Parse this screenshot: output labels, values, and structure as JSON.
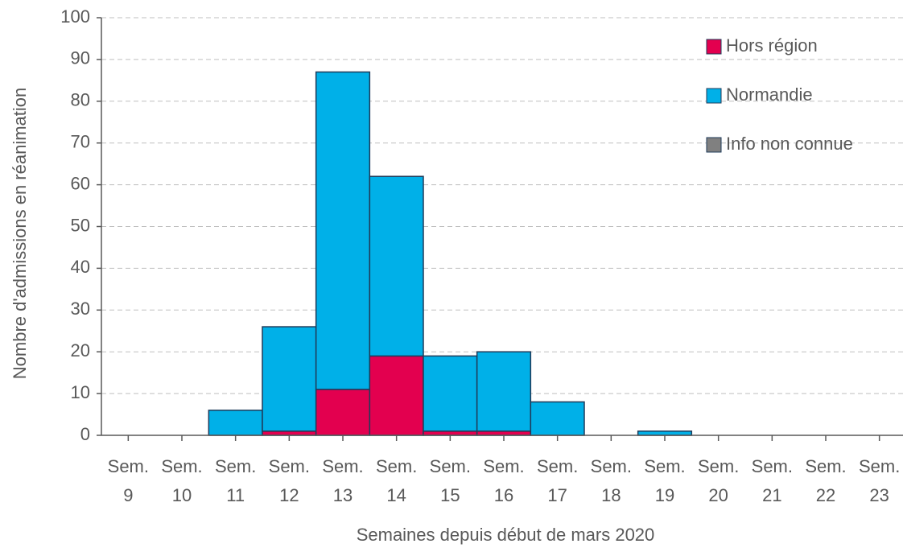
{
  "chart_data": {
    "type": "bar",
    "stacked": true,
    "categories": [
      "Sem. 9",
      "Sem. 10",
      "Sem. 11",
      "Sem. 12",
      "Sem. 13",
      "Sem. 14",
      "Sem. 15",
      "Sem. 16",
      "Sem. 17",
      "Sem. 18",
      "Sem. 19",
      "Sem. 20",
      "Sem. 21",
      "Sem. 22",
      "Sem. 23"
    ],
    "series": [
      {
        "name": "Hors région",
        "color": "#e3004f",
        "values": [
          0,
          0,
          0,
          1,
          11,
          19,
          1,
          1,
          0,
          0,
          0,
          0,
          0,
          0,
          0
        ]
      },
      {
        "name": "Normandie",
        "color": "#00b0e8",
        "values": [
          0,
          0,
          6,
          25,
          76,
          43,
          18,
          19,
          8,
          0,
          1,
          0,
          0,
          0,
          0
        ]
      },
      {
        "name": "Info non connue",
        "color": "#808080",
        "values": [
          0,
          0,
          0,
          0,
          0,
          0,
          0,
          0,
          0,
          0,
          0,
          0,
          0,
          0,
          0
        ]
      }
    ],
    "ylim": [
      0,
      100
    ],
    "yticks": [
      0,
      10,
      20,
      30,
      40,
      50,
      60,
      70,
      80,
      90,
      100
    ],
    "grid": true,
    "xlabel": "Semaines depuis début de mars 2020",
    "ylabel": "Nombre d'admissions en réanimation",
    "legend": "upper right"
  }
}
